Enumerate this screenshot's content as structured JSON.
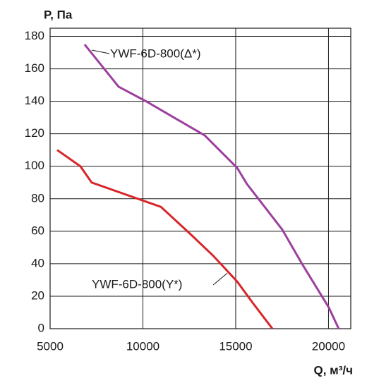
{
  "chart_data": {
    "type": "line",
    "ylabel": "P, Па",
    "xlabel": "Q, м³/ч",
    "xlim": [
      5000,
      21200
    ],
    "ylim": [
      0,
      185
    ],
    "xticks": [
      5000,
      10000,
      15000,
      20000
    ],
    "yticks": [
      0,
      20,
      40,
      60,
      80,
      100,
      120,
      140,
      160,
      180
    ],
    "grid": true,
    "series": [
      {
        "name": "YWF-6D-800(Δ*)",
        "color": "#9c3f9e",
        "x": [
          6860,
          8690,
          10170,
          13330,
          15080,
          15610,
          17510,
          18570,
          20020,
          20550
        ],
        "values": [
          175,
          149,
          140,
          119,
          99,
          89,
          61,
          40,
          13,
          0
        ]
      },
      {
        "name": "YWF-6D-800(Y*)",
        "color": "#d8262a",
        "x": [
          5380,
          6630,
          7240,
          10970,
          12490,
          13780,
          15080,
          15910,
          16980
        ],
        "values": [
          110,
          100,
          90,
          75,
          59,
          45,
          29,
          16,
          0
        ]
      }
    ]
  }
}
